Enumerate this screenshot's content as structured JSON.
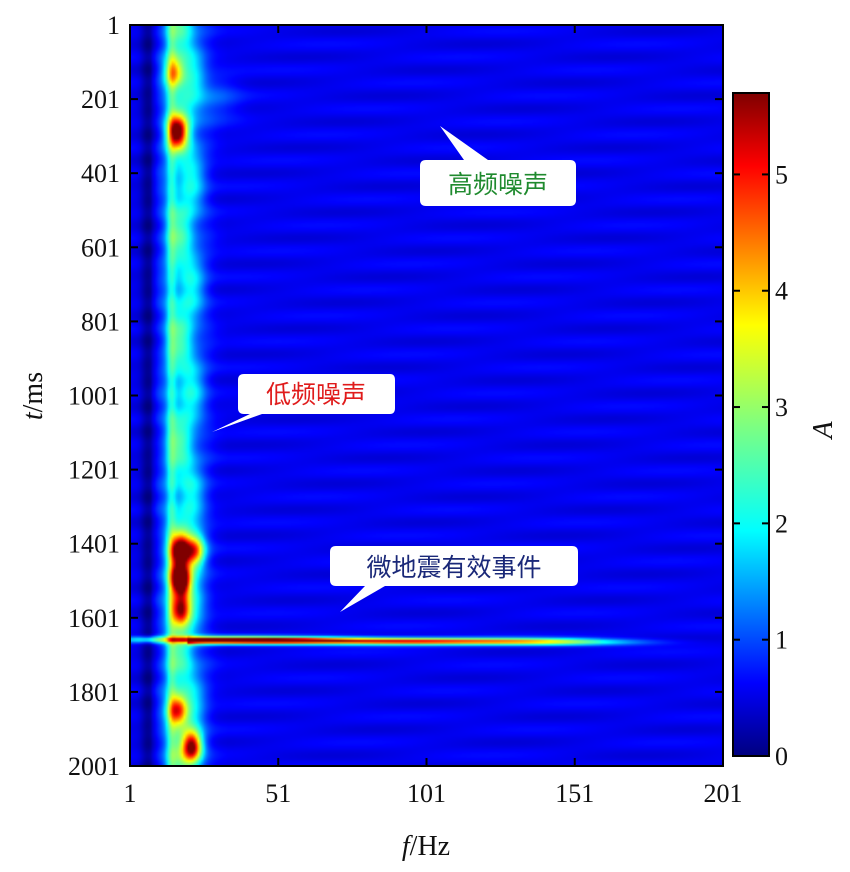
{
  "chart_data": {
    "type": "heatmap",
    "title": "",
    "xlabel_italic": "f",
    "xlabel_unit": "/Hz",
    "ylabel_italic": "t",
    "ylabel_unit": "/ms",
    "colorbar_label": "A",
    "x_ticks": [
      "1",
      "51",
      "101",
      "151",
      "201"
    ],
    "y_ticks": [
      "1",
      "201",
      "401",
      "601",
      "801",
      "1001",
      "1201",
      "1401",
      "1601",
      "1801",
      "2001"
    ],
    "colorbar_ticks": [
      "0",
      "1",
      "2",
      "3",
      "4",
      "5"
    ],
    "xlim": [
      1,
      201
    ],
    "ylim": [
      1,
      2001
    ],
    "clim": [
      0,
      5.7
    ],
    "y_axis_inverted": true,
    "colormap": "jet",
    "features": [
      {
        "f": 18,
        "t": 1500,
        "A": 5.6
      },
      {
        "f": 18,
        "t": 1420,
        "A": 4.2
      },
      {
        "f": 18,
        "t": 1580,
        "A": 4.0
      },
      {
        "f": 23,
        "t": 1420,
        "A": 3.4
      },
      {
        "f": 22,
        "t": 1950,
        "A": 4.5
      },
      {
        "f": 17,
        "t": 1850,
        "A": 3.6
      },
      {
        "f": 17,
        "t": 290,
        "A": 3.8
      },
      {
        "f": 16,
        "t": 130,
        "A": 2.6
      },
      {
        "f": 26,
        "t": 1660,
        "A": 2.8
      },
      {
        "f": 55,
        "t": 1662,
        "A": 3.5
      },
      {
        "f": 95,
        "t": 1665,
        "A": 3.0
      },
      {
        "f": 130,
        "t": 1665,
        "A": 2.2
      },
      {
        "f": 150,
        "t": 1667,
        "A": 1.2
      }
    ],
    "annotations": [
      {
        "text": "高频噪声",
        "color": "#1f8a2e"
      },
      {
        "text": "低频噪声",
        "color": "#e01b1b"
      },
      {
        "text": "微地震有效事件",
        "color": "#1a2878"
      }
    ]
  }
}
